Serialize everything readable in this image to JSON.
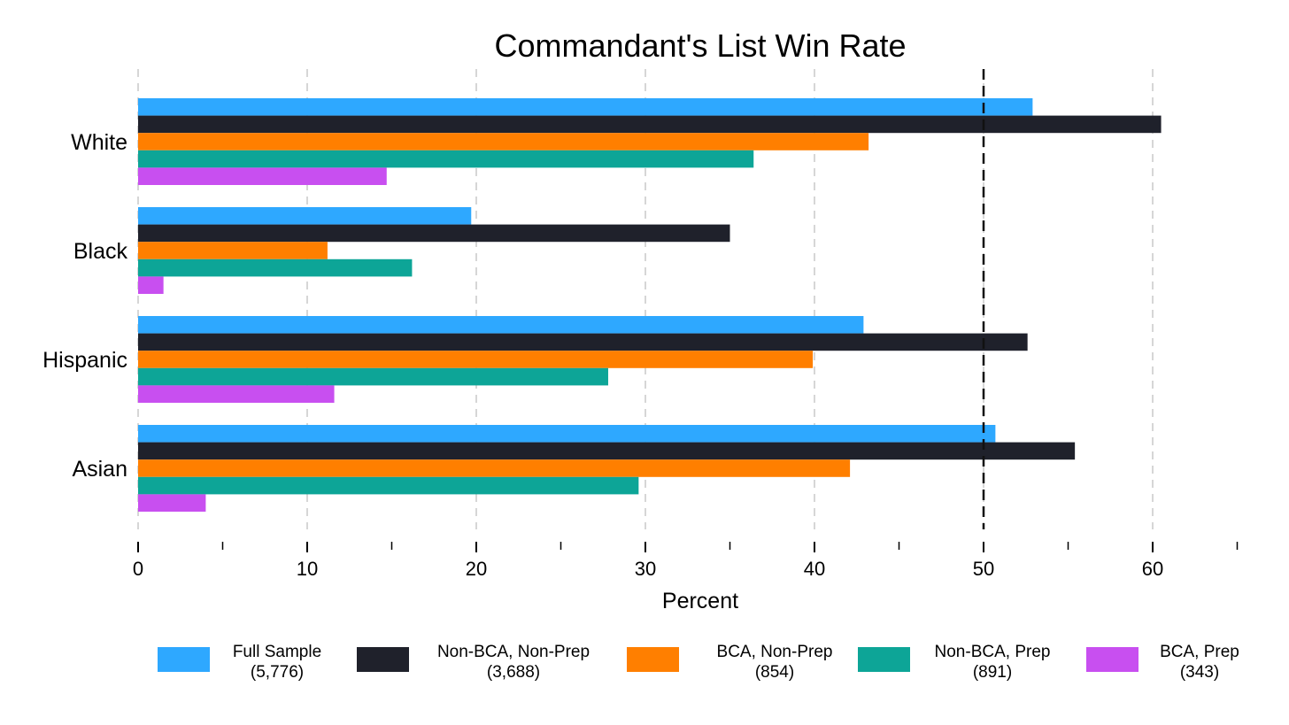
{
  "chart_data": {
    "type": "bar",
    "orientation": "horizontal",
    "title": "Commandant's List Win Rate",
    "xlabel": "Percent",
    "ylabel": "",
    "xlim": [
      0,
      65
    ],
    "xticks": [
      0,
      10,
      20,
      30,
      40,
      50,
      60
    ],
    "minor_xticks": [
      5,
      15,
      25,
      35,
      45,
      55,
      65
    ],
    "grid": "vertical dashed",
    "reference_line": {
      "x": 50,
      "style": "dashed",
      "color": "#111111"
    },
    "categories": [
      "White",
      "Black",
      "Hispanic",
      "Asian"
    ],
    "series": [
      {
        "name": "Full Sample",
        "n": "(5,776)",
        "color": "#2EA8FF",
        "values": [
          52.9,
          19.7,
          42.9,
          50.7
        ]
      },
      {
        "name": "Non-BCA, Non-Prep",
        "n": "(3,688)",
        "color": "#1F212B",
        "values": [
          60.5,
          35.0,
          52.6,
          55.4
        ]
      },
      {
        "name": "BCA, Non-Prep",
        "n": "(854)",
        "color": "#FF7F00",
        "values": [
          43.2,
          11.2,
          39.9,
          42.1
        ]
      },
      {
        "name": "Non-BCA, Prep",
        "n": "(891)",
        "color": "#0DA597",
        "values": [
          36.4,
          16.2,
          27.8,
          29.6
        ]
      },
      {
        "name": "BCA, Prep",
        "n": "(343)",
        "color": "#C84FF0",
        "values": [
          14.7,
          1.5,
          11.6,
          4.0
        ]
      }
    ],
    "legend_position": "bottom"
  }
}
